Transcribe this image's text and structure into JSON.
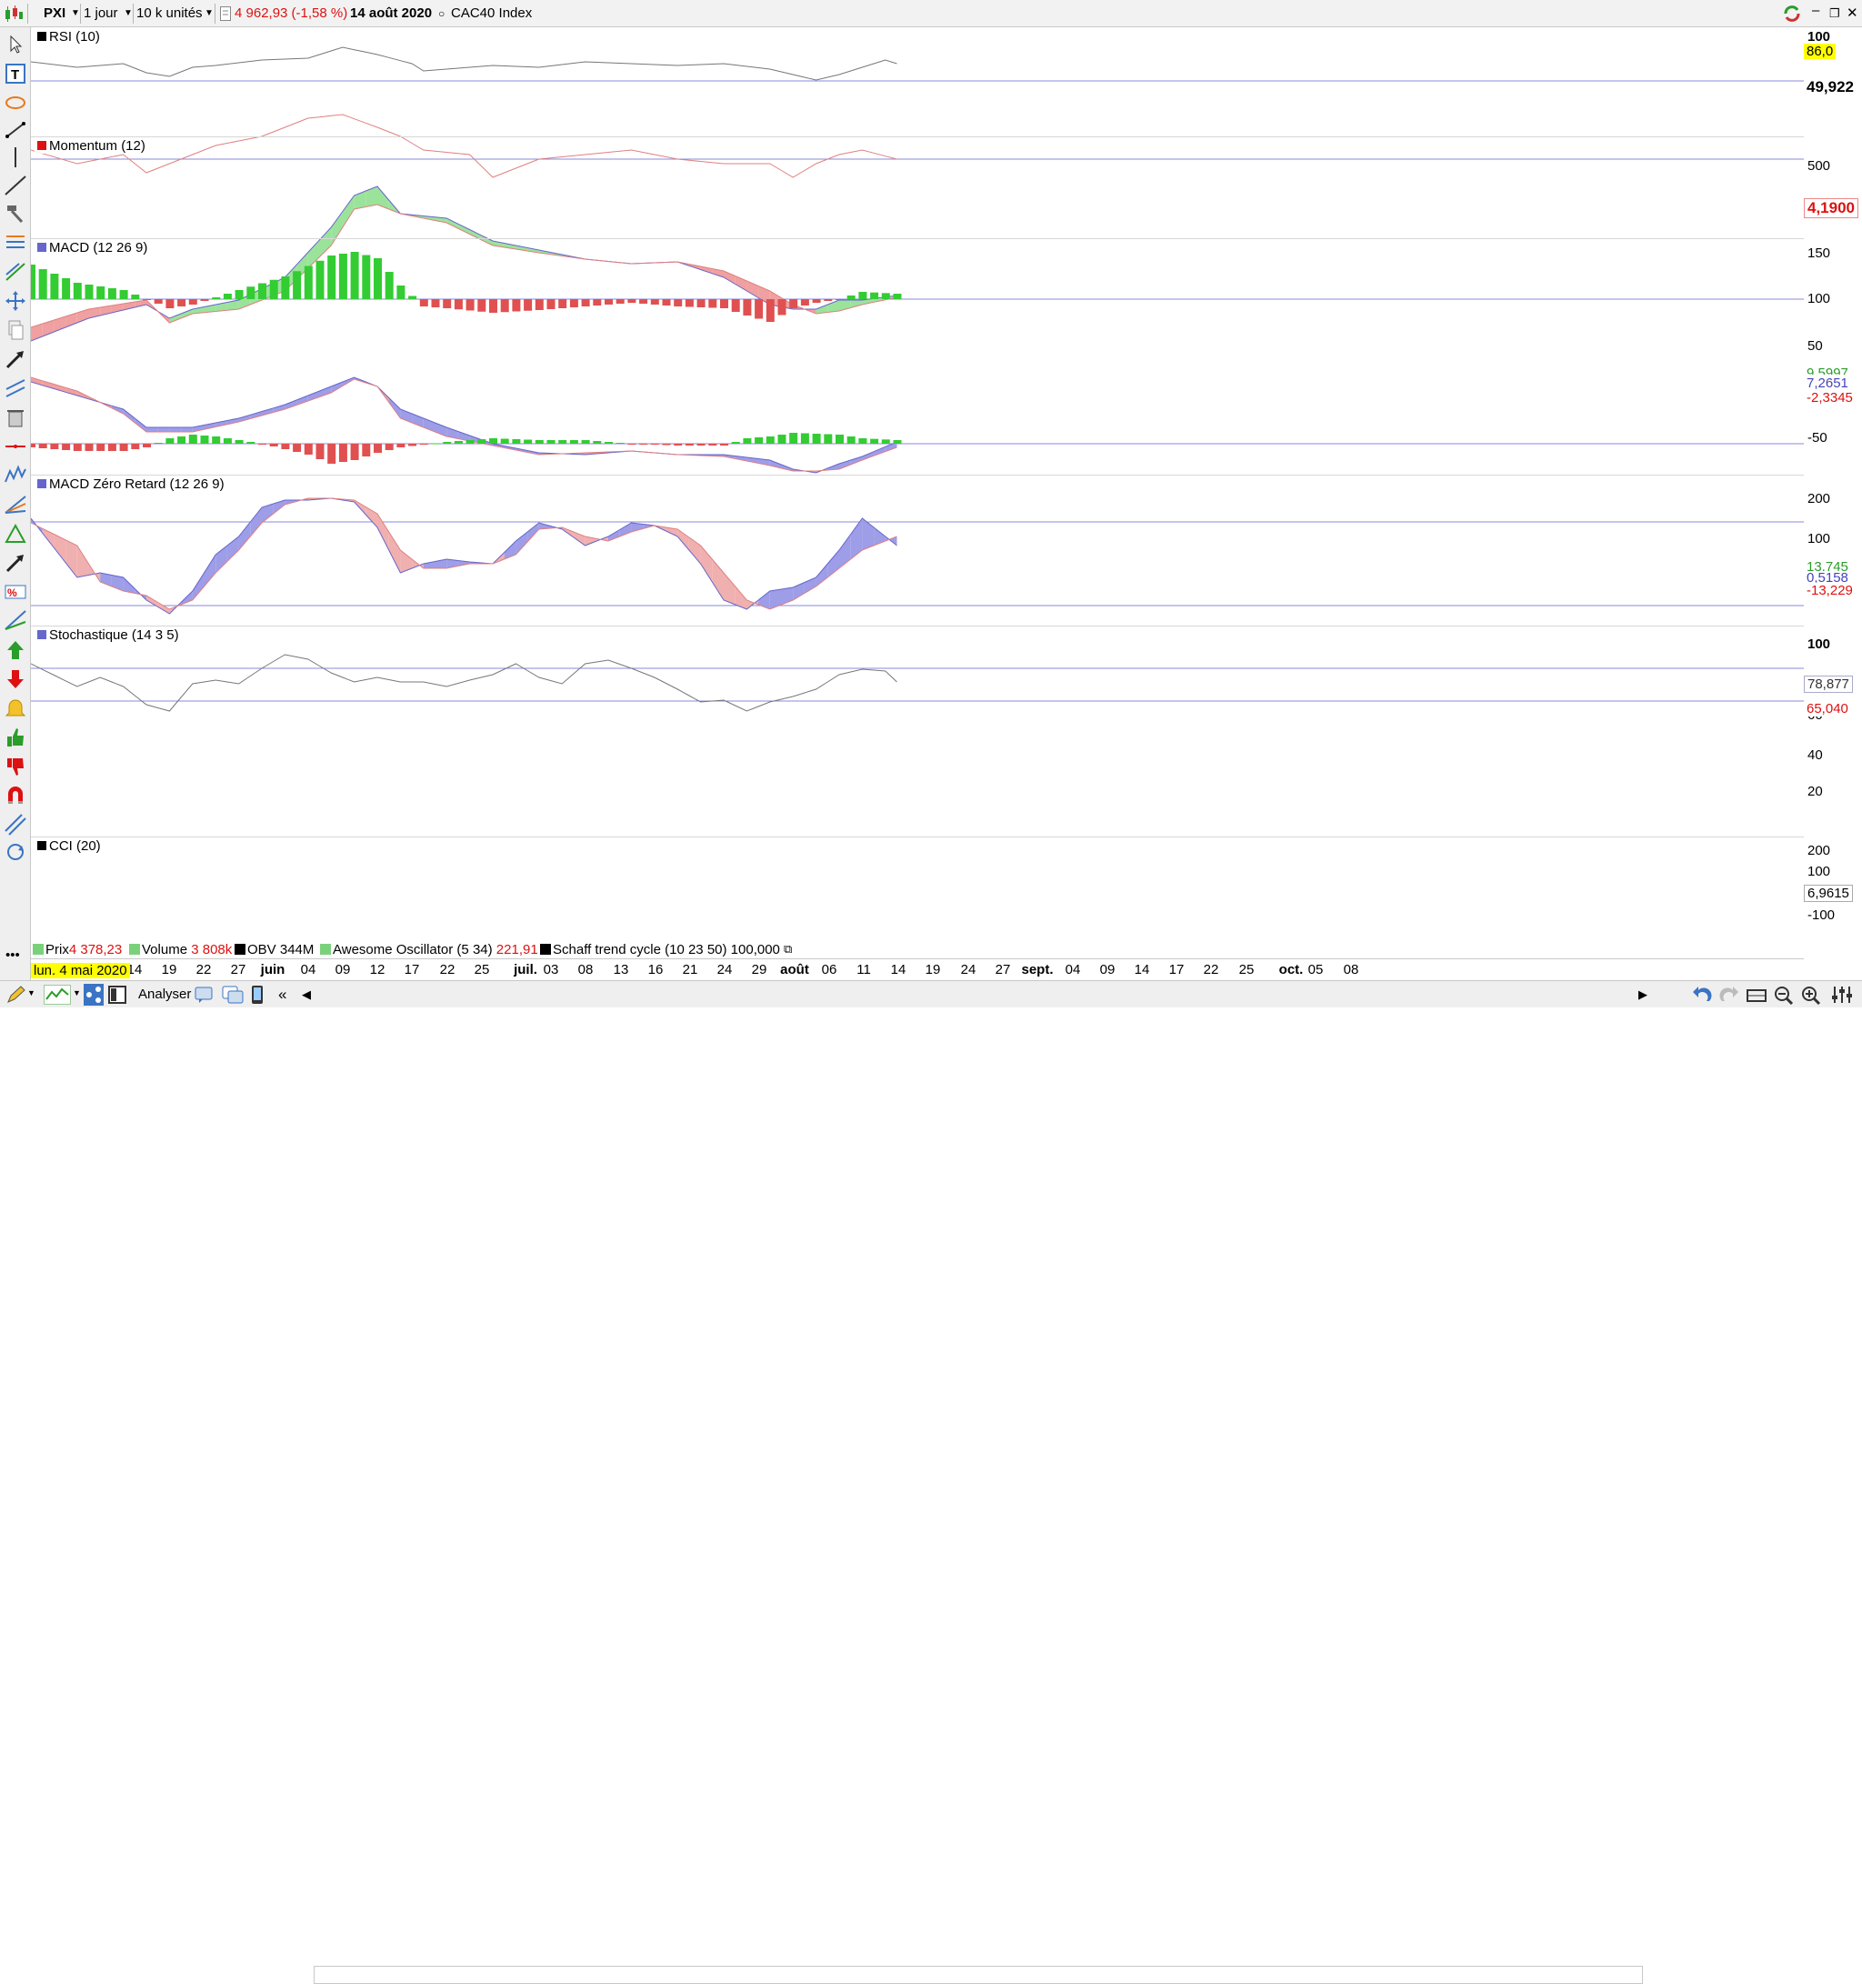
{
  "toolbar": {
    "symbol": "PXI",
    "period": "1 jour",
    "units": "10 k unités",
    "price": "4 962,93 (-1,58 %)",
    "date": "14 août 2020",
    "index": "CAC40 Index"
  },
  "panels": {
    "rsi": {
      "label": "RSI (10)",
      "value": "49,922",
      "top_marker": "100",
      "highlight": "86,0"
    },
    "momentum": {
      "label": "Momentum (12)",
      "tick_500": "500",
      "value": "4,1900"
    },
    "macd": {
      "label": "MACD (12 26 9)",
      "ticks": [
        "150",
        "100",
        "50",
        "-50"
      ],
      "val_green": "9,5997",
      "val_blue": "7,2651",
      "val_red": "-2,3345"
    },
    "macd_zero": {
      "label": "MACD Zéro Retard (12 26 9)",
      "ticks": [
        "200",
        "100"
      ],
      "val_green": "13,745",
      "val_blue": "0,5158",
      "val_red": "-13,229"
    },
    "stoch": {
      "label": "Stochastique (14 3 5)",
      "ticks": [
        "100",
        "40",
        "20"
      ],
      "val_blue": "78,877",
      "val_red": "65,040",
      "tick_60": "60"
    },
    "cci": {
      "label": "CCI (20)",
      "ticks": [
        "200",
        "100",
        "-100"
      ],
      "value": "6,9615"
    }
  },
  "legend": [
    {
      "name": "Prix",
      "value": "4 378,23",
      "color": "#7bd17b"
    },
    {
      "name": "Volume",
      "value": "3 808k",
      "color": "#7bd17b"
    },
    {
      "name": "OBV",
      "value": "344M",
      "color": "#000000"
    },
    {
      "name": "Awesome Oscillator (5 34)",
      "value": "221,91",
      "color": "#7bd17b"
    },
    {
      "name": "Schaff trend cycle (10 23 50)",
      "value": "100,000",
      "color": "#000000"
    }
  ],
  "xaxis": [
    "1",
    "14",
    "19",
    "22",
    "27",
    "juin",
    "04",
    "09",
    "12",
    "17",
    "22",
    "25",
    "juil.",
    "03",
    "08",
    "13",
    "16",
    "21",
    "24",
    "29",
    "août",
    "06",
    "11",
    "14",
    "19",
    "24",
    "27",
    "sept.",
    "04",
    "09",
    "14",
    "17",
    "22",
    "25",
    "oct.",
    "05",
    "08"
  ],
  "date_badge": "lun. 4 mai 2020",
  "statusbar": {
    "analyser": "Analyser"
  },
  "colors": {
    "green": "#33cc33",
    "red": "#e06060",
    "blue": "#6666cc",
    "line": "#777777"
  }
}
